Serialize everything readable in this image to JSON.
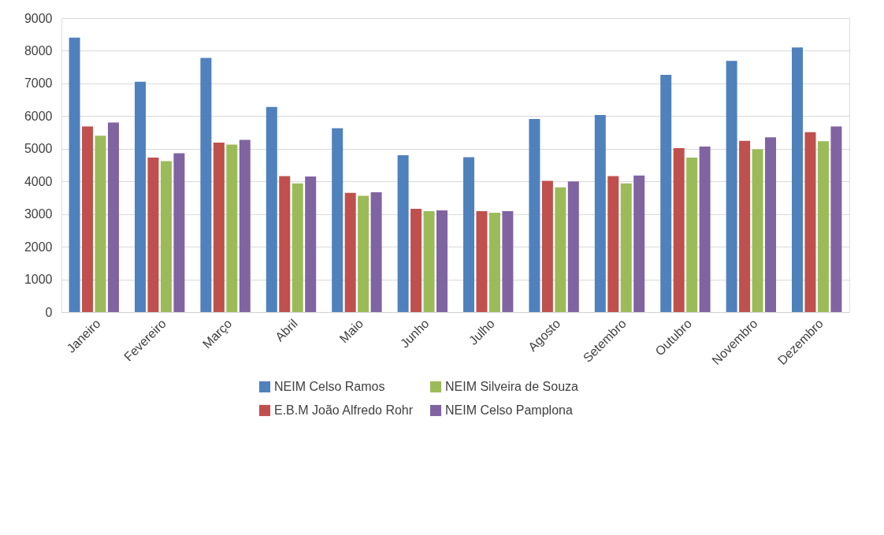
{
  "chart_data": {
    "type": "bar",
    "categories": [
      "Janeiro",
      "Fevereiro",
      "Março",
      "Abril",
      "Maio",
      "Junho",
      "Julho",
      "Agosto",
      "Setembro",
      "Outubro",
      "Novembro",
      "Dezembro"
    ],
    "series": [
      {
        "name": "NEIM Celso Ramos",
        "color": "#4f81bd",
        "values": [
          8400,
          7050,
          7780,
          6280,
          5630,
          4800,
          4740,
          5910,
          6030,
          7260,
          7690,
          8100
        ]
      },
      {
        "name": "E.B.M João Alfredo Rohr",
        "color": "#c0504d",
        "values": [
          5680,
          4730,
          5190,
          4160,
          3650,
          3160,
          3090,
          4020,
          4160,
          5020,
          5240,
          5510
        ]
      },
      {
        "name": "NEIM Silveira de Souza",
        "color": "#9bbb59",
        "values": [
          5400,
          4620,
          5130,
          3940,
          3560,
          3090,
          3040,
          3820,
          3940,
          4730,
          4980,
          5230
        ]
      },
      {
        "name": "NEIM Celso Pamplona",
        "color": "#8064a2",
        "values": [
          5800,
          4860,
          5270,
          4150,
          3670,
          3110,
          3090,
          4000,
          4180,
          5070,
          5350,
          5680
        ]
      }
    ],
    "ylim": [
      0,
      9000
    ],
    "yticks": [
      0,
      1000,
      2000,
      3000,
      4000,
      5000,
      6000,
      7000,
      8000,
      9000
    ],
    "grid": "y",
    "legend": "bottom"
  }
}
